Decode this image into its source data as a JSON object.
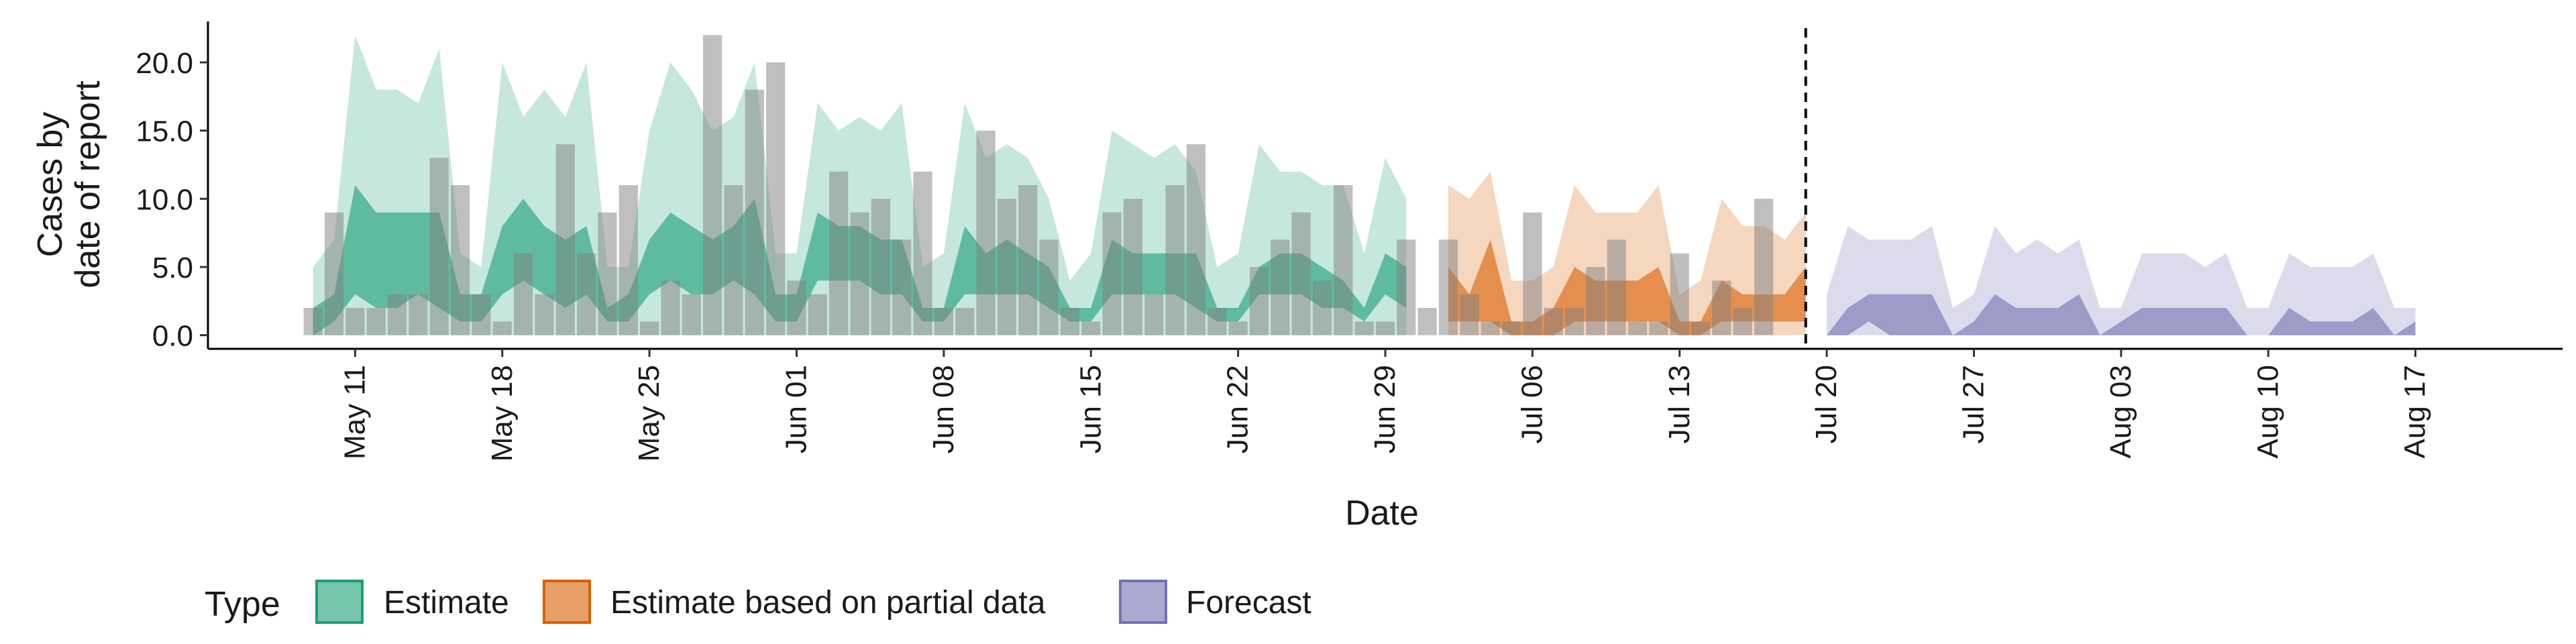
{
  "chart_data": {
    "type": "area",
    "xlabel": "Date",
    "ylabel_lines": [
      "Cases by",
      "date of report"
    ],
    "ylim": [
      -1.0,
      23.0
    ],
    "y_ticks": [
      0.0,
      5.0,
      10.0,
      15.0,
      20.0
    ],
    "y_tick_labels": [
      "0.0",
      "5.0",
      "10.0",
      "15.0",
      "20.0"
    ],
    "x_start_date": "2020-05-04",
    "x_end_date": "2020-08-24",
    "x_ticks": [
      {
        "date": "2020-05-11",
        "label": "May 11"
      },
      {
        "date": "2020-05-18",
        "label": "May 18"
      },
      {
        "date": "2020-05-25",
        "label": "May 25"
      },
      {
        "date": "2020-06-01",
        "label": "Jun 01"
      },
      {
        "date": "2020-06-08",
        "label": "Jun 08"
      },
      {
        "date": "2020-06-15",
        "label": "Jun 15"
      },
      {
        "date": "2020-06-22",
        "label": "Jun 22"
      },
      {
        "date": "2020-06-29",
        "label": "Jun 29"
      },
      {
        "date": "2020-07-06",
        "label": "Jul 06"
      },
      {
        "date": "2020-07-13",
        "label": "Jul 13"
      },
      {
        "date": "2020-07-20",
        "label": "Jul 20"
      },
      {
        "date": "2020-07-27",
        "label": "Jul 27"
      },
      {
        "date": "2020-08-03",
        "label": "Aug 03"
      },
      {
        "date": "2020-08-10",
        "label": "Aug 10"
      },
      {
        "date": "2020-08-17",
        "label": "Aug 17"
      }
    ],
    "vline_date": "2020-07-19",
    "legend": {
      "title": "Type",
      "position": "bottom",
      "items": [
        {
          "label": "Estimate",
          "color": "#1b9e77"
        },
        {
          "label": "Estimate based on partial data",
          "color": "#d95f02"
        },
        {
          "label": "Forecast",
          "color": "#7570b3"
        }
      ]
    },
    "bar_color": "#7f7f7f",
    "bars": [
      {
        "date": "2020-05-09",
        "value": 2
      },
      {
        "date": "2020-05-10",
        "value": 9
      },
      {
        "date": "2020-05-11",
        "value": 2
      },
      {
        "date": "2020-05-12",
        "value": 2
      },
      {
        "date": "2020-05-13",
        "value": 3
      },
      {
        "date": "2020-05-14",
        "value": 3
      },
      {
        "date": "2020-05-15",
        "value": 13
      },
      {
        "date": "2020-05-16",
        "value": 11
      },
      {
        "date": "2020-05-17",
        "value": 3
      },
      {
        "date": "2020-05-18",
        "value": 1
      },
      {
        "date": "2020-05-19",
        "value": 6
      },
      {
        "date": "2020-05-20",
        "value": 3
      },
      {
        "date": "2020-05-21",
        "value": 14
      },
      {
        "date": "2020-05-22",
        "value": 6
      },
      {
        "date": "2020-05-23",
        "value": 9
      },
      {
        "date": "2020-05-24",
        "value": 11
      },
      {
        "date": "2020-05-25",
        "value": 1
      },
      {
        "date": "2020-05-26",
        "value": 4
      },
      {
        "date": "2020-05-27",
        "value": 3
      },
      {
        "date": "2020-05-28",
        "value": 22
      },
      {
        "date": "2020-05-29",
        "value": 11
      },
      {
        "date": "2020-05-30",
        "value": 18
      },
      {
        "date": "2020-05-31",
        "value": 20
      },
      {
        "date": "2020-06-01",
        "value": 4
      },
      {
        "date": "2020-06-02",
        "value": 3
      },
      {
        "date": "2020-06-03",
        "value": 12
      },
      {
        "date": "2020-06-04",
        "value": 9
      },
      {
        "date": "2020-06-05",
        "value": 10
      },
      {
        "date": "2020-06-06",
        "value": 7
      },
      {
        "date": "2020-06-07",
        "value": 12
      },
      {
        "date": "2020-06-08",
        "value": 2
      },
      {
        "date": "2020-06-09",
        "value": 2
      },
      {
        "date": "2020-06-10",
        "value": 15
      },
      {
        "date": "2020-06-11",
        "value": 10
      },
      {
        "date": "2020-06-12",
        "value": 11
      },
      {
        "date": "2020-06-13",
        "value": 7
      },
      {
        "date": "2020-06-14",
        "value": 2
      },
      {
        "date": "2020-06-15",
        "value": 1
      },
      {
        "date": "2020-06-16",
        "value": 9
      },
      {
        "date": "2020-06-17",
        "value": 10
      },
      {
        "date": "2020-06-18",
        "value": 3
      },
      {
        "date": "2020-06-19",
        "value": 11
      },
      {
        "date": "2020-06-20",
        "value": 14
      },
      {
        "date": "2020-06-21",
        "value": 2
      },
      {
        "date": "2020-06-22",
        "value": 1
      },
      {
        "date": "2020-06-23",
        "value": 5
      },
      {
        "date": "2020-06-24",
        "value": 7
      },
      {
        "date": "2020-06-25",
        "value": 9
      },
      {
        "date": "2020-06-26",
        "value": 4
      },
      {
        "date": "2020-06-27",
        "value": 11
      },
      {
        "date": "2020-06-28",
        "value": 1
      },
      {
        "date": "2020-06-29",
        "value": 1
      },
      {
        "date": "2020-06-30",
        "value": 7
      },
      {
        "date": "2020-07-01",
        "value": 2
      },
      {
        "date": "2020-07-02",
        "value": 7
      },
      {
        "date": "2020-07-03",
        "value": 3
      },
      {
        "date": "2020-07-04",
        "value": 1
      },
      {
        "date": "2020-07-05",
        "value": 1
      },
      {
        "date": "2020-07-06",
        "value": 9
      },
      {
        "date": "2020-07-07",
        "value": 2
      },
      {
        "date": "2020-07-08",
        "value": 2
      },
      {
        "date": "2020-07-09",
        "value": 5
      },
      {
        "date": "2020-07-10",
        "value": 7
      },
      {
        "date": "2020-07-11",
        "value": 1
      },
      {
        "date": "2020-07-12",
        "value": 1
      },
      {
        "date": "2020-07-13",
        "value": 6
      },
      {
        "date": "2020-07-14",
        "value": 1
      },
      {
        "date": "2020-07-15",
        "value": 4
      },
      {
        "date": "2020-07-16",
        "value": 2
      },
      {
        "date": "2020-07-17",
        "value": 10
      }
    ],
    "series": [
      {
        "name": "Estimate",
        "start_date": "2020-05-09",
        "lower90": [
          0,
          0,
          0,
          0,
          0,
          0,
          0,
          0,
          0,
          0,
          0,
          0,
          0,
          0,
          0,
          0,
          0,
          0,
          0,
          0,
          0,
          0,
          0,
          0,
          0,
          0,
          0,
          0,
          0,
          0,
          0,
          0,
          0,
          0,
          0,
          0,
          0,
          0,
          0,
          0,
          0,
          0,
          0,
          0,
          0,
          0,
          0,
          0,
          0,
          0,
          0,
          0,
          0
        ],
        "upper90": [
          5,
          7,
          22,
          18,
          18,
          17,
          21,
          6,
          5,
          20,
          16,
          18,
          16,
          20,
          5,
          5,
          15,
          20,
          18,
          15,
          16,
          20,
          6,
          6,
          17,
          15,
          16,
          15,
          17,
          5,
          6,
          17,
          13,
          14,
          13,
          10,
          4,
          6,
          15,
          14,
          13,
          14,
          12,
          5,
          6,
          14,
          12,
          12,
          11,
          11,
          6,
          13,
          10
        ],
        "lower50": [
          0,
          1,
          3,
          2,
          2,
          3,
          2,
          1,
          1,
          3,
          4,
          3,
          2,
          3,
          1,
          1,
          3,
          4,
          3,
          3,
          4,
          3,
          1,
          1,
          4,
          4,
          4,
          3,
          3,
          1,
          1,
          3,
          3,
          3,
          3,
          2,
          1,
          1,
          3,
          3,
          3,
          3,
          2,
          1,
          1,
          3,
          3,
          3,
          2,
          2,
          1,
          3,
          2
        ],
        "upper50": [
          2,
          3,
          11,
          9,
          9,
          9,
          9,
          3,
          3,
          8,
          10,
          8,
          7,
          8,
          2,
          3,
          7,
          9,
          8,
          7,
          8,
          10,
          3,
          3,
          9,
          8,
          8,
          7,
          7,
          2,
          2,
          8,
          6,
          7,
          6,
          5,
          2,
          2,
          7,
          6,
          6,
          6,
          6,
          2,
          2,
          5,
          6,
          6,
          5,
          4,
          2,
          6,
          5
        ]
      },
      {
        "name": "Estimate based on partial data",
        "start_date": "2020-07-02",
        "lower90": [
          0,
          0,
          0,
          0,
          0,
          0,
          0,
          0,
          0,
          0,
          0,
          0,
          0,
          0,
          0,
          0,
          0,
          0
        ],
        "upper90": [
          11,
          10,
          12,
          4,
          4,
          5,
          11,
          9,
          9,
          9,
          11,
          3,
          4,
          10,
          8,
          8,
          7,
          9
        ],
        "lower50": [
          1,
          1,
          1,
          0,
          0,
          0,
          1,
          1,
          1,
          1,
          1,
          0,
          0,
          1,
          1,
          1,
          1,
          1
        ],
        "upper50": [
          5,
          3,
          7,
          1,
          1,
          2,
          5,
          4,
          4,
          4,
          5,
          1,
          1,
          4,
          3,
          3,
          3,
          5
        ]
      },
      {
        "name": "Forecast",
        "start_date": "2020-07-20",
        "lower90": [
          0,
          0,
          0,
          0,
          0,
          0,
          0,
          0,
          0,
          0,
          0,
          0,
          0,
          0,
          0,
          0,
          0,
          0,
          0,
          0,
          0,
          0,
          0,
          0,
          0,
          0,
          0,
          0,
          0
        ],
        "upper90": [
          3,
          8,
          7,
          7,
          7,
          8,
          2,
          3,
          8,
          6,
          7,
          6,
          7,
          2,
          2,
          6,
          6,
          6,
          5,
          6,
          2,
          2,
          6,
          5,
          5,
          5,
          6,
          2,
          2
        ],
        "lower50": [
          0,
          0,
          1,
          0,
          0,
          0,
          0,
          0,
          0,
          0,
          0,
          0,
          0,
          0,
          0,
          0,
          0,
          0,
          0,
          0,
          0,
          0,
          0,
          0,
          0,
          0,
          0,
          0,
          0
        ],
        "upper50": [
          0,
          2,
          3,
          3,
          3,
          3,
          0,
          1,
          3,
          2,
          2,
          2,
          3,
          0,
          1,
          2,
          2,
          2,
          2,
          2,
          0,
          0,
          2,
          1,
          1,
          1,
          2,
          0,
          1
        ]
      }
    ]
  }
}
